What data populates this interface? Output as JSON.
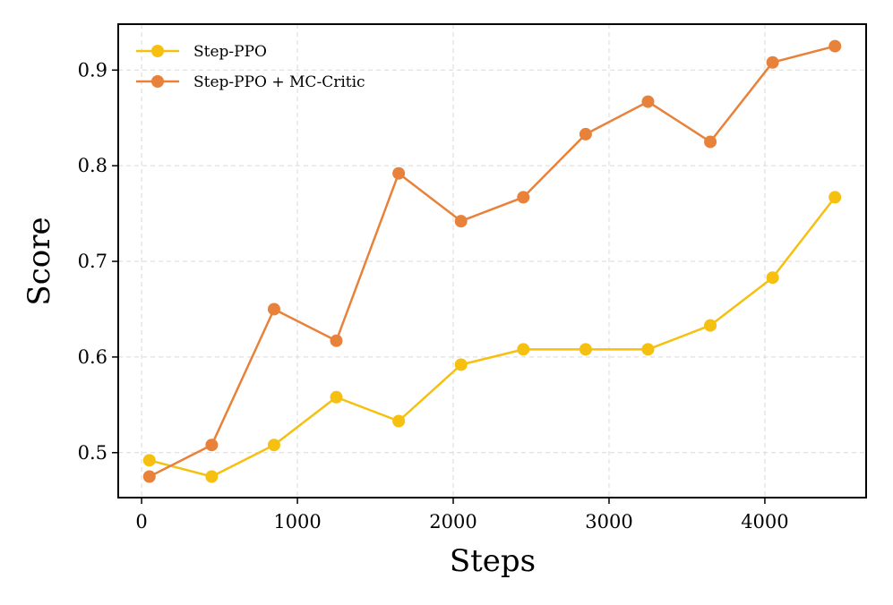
{
  "chart_data": {
    "type": "line",
    "title": "",
    "xlabel": "Steps",
    "ylabel": "Score",
    "xlim": [
      -150,
      4650
    ],
    "ylim": [
      0.453,
      0.948
    ],
    "xticks": [
      0,
      1000,
      2000,
      3000,
      4000
    ],
    "xtick_labels": [
      "0",
      "1000",
      "2000",
      "3000",
      "4000"
    ],
    "yticks": [
      0.5,
      0.6,
      0.7,
      0.8,
      0.9
    ],
    "ytick_labels": [
      "0.5",
      "0.6",
      "0.7",
      "0.8",
      "0.9"
    ],
    "grid": true,
    "legend_position": "top-left",
    "x": [
      50,
      450,
      850,
      1250,
      1650,
      2050,
      2450,
      2850,
      3250,
      3650,
      4050,
      4450
    ],
    "series": [
      {
        "name": "Step-PPO",
        "color": "#f5c00f",
        "values": [
          0.492,
          0.475,
          0.508,
          0.558,
          0.533,
          0.592,
          0.608,
          0.608,
          0.608,
          0.633,
          0.683,
          0.767
        ]
      },
      {
        "name": "Step-PPO + MC-Critic",
        "color": "#e8823a",
        "values": [
          0.475,
          0.508,
          0.65,
          0.617,
          0.792,
          0.742,
          0.767,
          0.833,
          0.867,
          0.825,
          0.908,
          0.925
        ]
      }
    ]
  }
}
